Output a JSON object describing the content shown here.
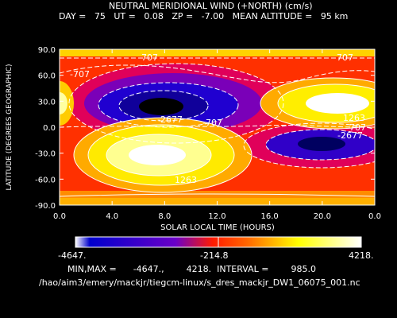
{
  "chart_data": {
    "type": "heatmap",
    "title": "NEUTRAL MERIDIONAL WIND (+NORTH) (cm/s)",
    "subtitle": "DAY =   75   UT =   0.08   ZP =   -7.00   MEAN ALTITUDE =   95 km",
    "xlabel": "SOLAR LOCAL TIME (HOURS)",
    "ylabel": "LATITUDE (DEGREES GEOGRAPHIC)",
    "xlim": [
      0,
      24
    ],
    "ylim": [
      -90,
      90
    ],
    "x_ticks": [
      "0.0",
      "4.0",
      "8.0",
      "12.0",
      "16.0",
      "20.0",
      "0.0"
    ],
    "y_ticks": [
      "90.0",
      "60.0",
      "30.0",
      "0.0",
      "-30.0",
      "-60.0",
      "-90.0"
    ],
    "contour_labels": [
      "707",
      "-707",
      "707",
      "-2677",
      "-707",
      "1263",
      "707",
      "-2677",
      "1263"
    ],
    "colorbar": {
      "min_label": "-4647.",
      "mid_label": "-214.8",
      "max_label": "4218."
    },
    "min": -4647,
    "max": 4218,
    "interval": 985.0,
    "features": [
      {
        "type": "min",
        "lt": 8.0,
        "lat": 22,
        "value": -4647
      },
      {
        "type": "max",
        "lt": 8.0,
        "lat": -33,
        "value": 4218
      },
      {
        "type": "max",
        "lt": 21.0,
        "lat": 27,
        "value": 3300
      },
      {
        "type": "min",
        "lt": 20.0,
        "lat": -20,
        "value": -3000
      },
      {
        "type": "max",
        "lt": 0.0,
        "lat": 27,
        "value": 1400
      }
    ]
  },
  "footer": {
    "minmax_line": "MIN,MAX =      -4647.,        4218.  INTERVAL =        985.0",
    "path": "/hao/aim3/emery/mackjr/tiegcm-linux/s_dres_mackjr_DW1_06075_001.nc"
  },
  "colors": {
    "background": "#000000",
    "text": "#ffffff",
    "contour": "#ffffff"
  }
}
